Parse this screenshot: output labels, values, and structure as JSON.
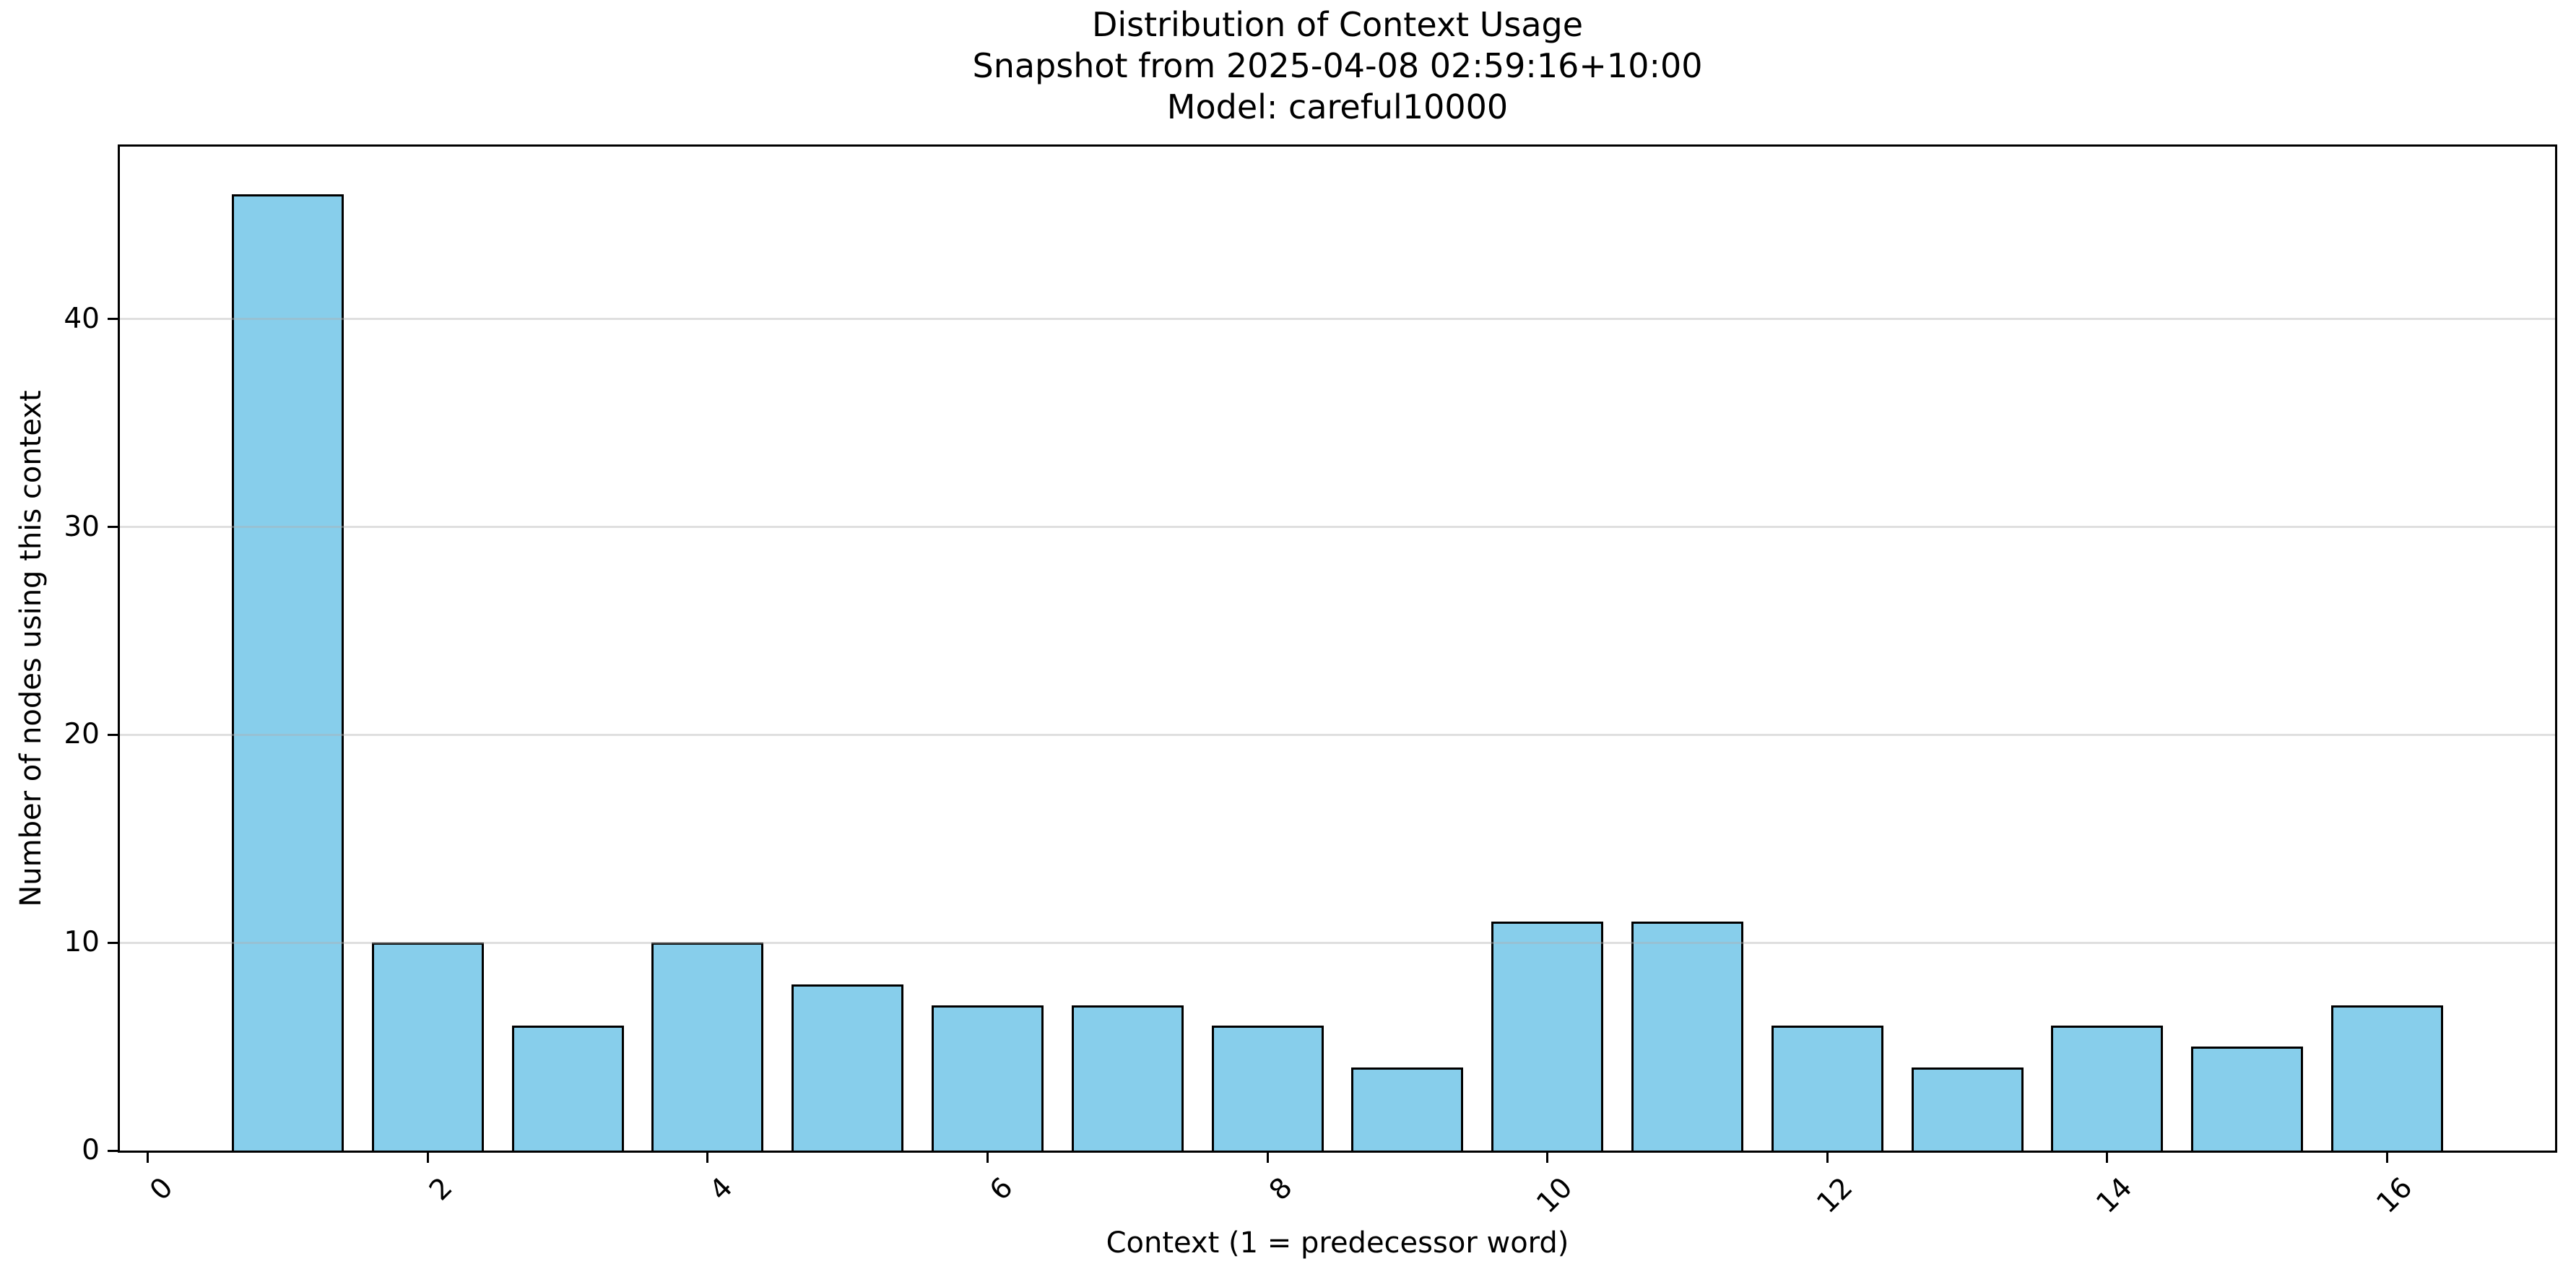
{
  "chart_data": {
    "type": "bar",
    "title": "Distribution of Context Usage",
    "subtitle1": "Snapshot from 2025-04-08 02:59:16+10:00",
    "subtitle2": "Model: careful10000",
    "xlabel": "Context (1 = predecessor word)",
    "ylabel": "Number of nodes using this context",
    "x": [
      1,
      2,
      3,
      4,
      5,
      6,
      7,
      8,
      9,
      10,
      11,
      12,
      13,
      14,
      15,
      16
    ],
    "values": [
      46,
      10,
      6,
      10,
      8,
      7,
      7,
      6,
      4,
      11,
      11,
      6,
      4,
      6,
      5,
      7
    ],
    "xticks": [
      0,
      2,
      4,
      6,
      8,
      10,
      12,
      14,
      16
    ],
    "yticks": [
      0,
      10,
      20,
      30,
      40
    ],
    "xlim": [
      -0.2,
      17.2
    ],
    "ylim": [
      0,
      48.3
    ],
    "bar_width": 0.8,
    "xtick_rotation_deg": 45,
    "grid_axis": "y",
    "grid_above_bars": true,
    "legend_position": "none",
    "colors": {
      "bar_fill": "#87CEEB",
      "bar_edge": "#000000",
      "grid": "rgba(176,176,176,0.4)",
      "background": "#FFFFFF",
      "text": "#000000"
    }
  }
}
